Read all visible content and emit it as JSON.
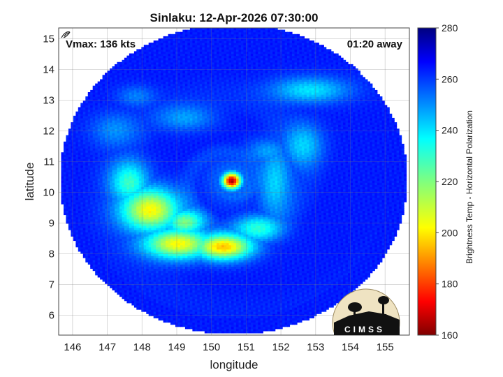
{
  "chart_data": {
    "type": "heatmap",
    "title": "Sinlaku: 12-Apr-2026 07:30:00",
    "xlabel": "longitude",
    "ylabel": "latitude",
    "xlim": [
      145.6,
      155.7
    ],
    "ylim": [
      5.35,
      15.35
    ],
    "x_ticks": [
      146,
      147,
      148,
      149,
      150,
      151,
      152,
      153,
      154,
      155
    ],
    "y_ticks": [
      6,
      7,
      8,
      9,
      10,
      11,
      12,
      13,
      14,
      15
    ],
    "grid": true,
    "annotations": {
      "vmax": "Vmax: 136 kts",
      "time_away": "01:20 away"
    },
    "colorbar": {
      "label": "Brightness Temp - Horizontal Polarization",
      "range": [
        160,
        280
      ],
      "ticks": [
        160,
        180,
        200,
        220,
        240,
        260,
        280
      ],
      "colormap": "jet"
    },
    "storm_center": {
      "lon": 150.55,
      "lat": 10.35
    },
    "swath": {
      "center_lon": 150.6,
      "center_lat": 10.4,
      "radius_lon": 5.0,
      "radius_lat": 5.05
    },
    "background_temp": 262,
    "features": [
      {
        "lon": 150.55,
        "lat": 10.35,
        "sx": 0.18,
        "sy": 0.18,
        "temp": 165
      },
      {
        "lon": 150.6,
        "lat": 10.32,
        "sx": 0.08,
        "sy": 0.08,
        "temp": 240
      },
      {
        "lon": 148.2,
        "lat": 9.4,
        "sx": 0.6,
        "sy": 0.5,
        "temp": 205
      },
      {
        "lon": 149.0,
        "lat": 8.3,
        "sx": 0.7,
        "sy": 0.35,
        "temp": 205
      },
      {
        "lon": 150.3,
        "lat": 8.2,
        "sx": 0.6,
        "sy": 0.3,
        "temp": 198
      },
      {
        "lon": 151.3,
        "lat": 8.8,
        "sx": 0.5,
        "sy": 0.3,
        "temp": 230
      },
      {
        "lon": 147.6,
        "lat": 10.3,
        "sx": 0.4,
        "sy": 0.5,
        "temp": 228
      },
      {
        "lon": 149.2,
        "lat": 9.0,
        "sx": 0.4,
        "sy": 0.3,
        "temp": 220
      },
      {
        "lon": 151.8,
        "lat": 10.3,
        "sx": 0.35,
        "sy": 0.9,
        "temp": 240
      },
      {
        "lon": 152.8,
        "lat": 13.3,
        "sx": 0.8,
        "sy": 0.3,
        "temp": 238
      },
      {
        "lon": 152.6,
        "lat": 11.5,
        "sx": 0.4,
        "sy": 0.5,
        "temp": 240
      },
      {
        "lon": 149.2,
        "lat": 12.4,
        "sx": 0.6,
        "sy": 0.3,
        "temp": 246
      },
      {
        "lon": 147.2,
        "lat": 12.0,
        "sx": 0.5,
        "sy": 0.4,
        "temp": 248
      },
      {
        "lon": 147.8,
        "lat": 13.1,
        "sx": 0.4,
        "sy": 0.25,
        "temp": 250
      },
      {
        "lon": 150.6,
        "lat": 10.35,
        "sx": 0.55,
        "sy": 0.55,
        "temp": 250
      },
      {
        "lon": 151.6,
        "lat": 11.3,
        "sx": 0.45,
        "sy": 0.3,
        "temp": 246
      }
    ]
  },
  "logo": {
    "text": "CIMSS"
  }
}
